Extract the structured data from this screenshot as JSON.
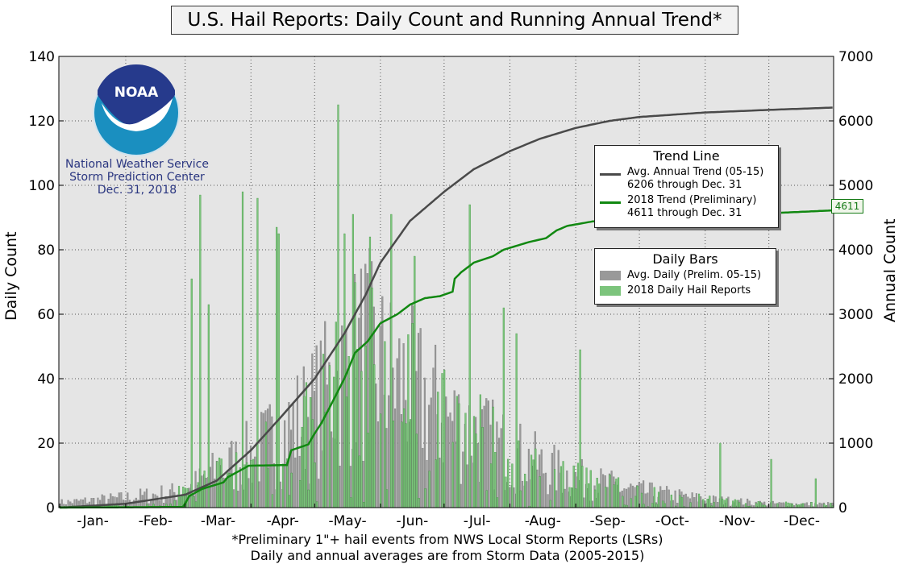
{
  "title": "U.S. Hail Reports: Daily Count and Running Annual Trend*",
  "logo": {
    "emblem_text": "NOAA",
    "lines": [
      "National Weather Service",
      "Storm Prediction Center",
      "Dec. 31, 2018"
    ]
  },
  "footnotes": [
    "*Preliminary 1\"+ hail events from NWS Local Storm Reports (LSRs)",
    "Daily and annual averages are from Storm Data (2005-2015)"
  ],
  "legend_trend": {
    "title": "Trend Line",
    "items": [
      {
        "line1": "Avg. Annual Trend (05-15)",
        "line2": "6206 through Dec. 31",
        "color": "#4a4a4a"
      },
      {
        "line1": "2018 Trend (Preliminary)",
        "line2": "4611 through Dec. 31",
        "color": "#118811"
      }
    ]
  },
  "legend_bars": {
    "title": "Daily Bars",
    "items": [
      {
        "label": "Avg. Daily (Prelim. 05-15)",
        "color": "#999999"
      },
      {
        "label": "2018 Daily Hail Reports",
        "color": "#7cc47c"
      }
    ]
  },
  "end_label": "4611",
  "chart_data": {
    "type": "bar",
    "xlabel": "",
    "ylabel": "Daily Count",
    "y2label": "Annual Count",
    "ylim": [
      0,
      140
    ],
    "y2lim": [
      0,
      7000
    ],
    "yticks": [
      0,
      20,
      40,
      60,
      80,
      100,
      120,
      140
    ],
    "y2ticks": [
      0,
      1000,
      2000,
      3000,
      4000,
      5000,
      6000,
      7000
    ],
    "months": [
      "-Jan-",
      "-Feb-",
      "-Mar-",
      "-Apr-",
      "-May-",
      "-Jun-",
      "-Jul-",
      "-Aug-",
      "-Sep-",
      "-Oct-",
      "-Nov-",
      "-Dec-"
    ],
    "x_range_days": [
      1,
      365
    ],
    "grid": true,
    "bar_series": [
      {
        "name": "Avg. Daily (Prelim. 05-15)",
        "color": "#999999",
        "profile_day": [
          1,
          32,
          60,
          75,
          91,
          105,
          121,
          135,
          145,
          152,
          166,
          182,
          196,
          213,
          227,
          244,
          274,
          305,
          335,
          365
        ],
        "profile_typical": [
          1.5,
          3,
          5,
          11,
          16,
          22,
          30,
          41,
          48,
          42,
          37,
          28,
          23,
          17,
          13,
          9,
          5,
          2.5,
          1.2,
          1
        ]
      },
      {
        "name": "2018 Daily Hail Reports",
        "color": "#7cc47c",
        "peaks": [
          [
            63,
            71
          ],
          [
            67,
            97
          ],
          [
            71,
            63
          ],
          [
            87,
            98
          ],
          [
            94,
            96
          ],
          [
            103,
            87
          ],
          [
            104,
            85
          ],
          [
            132,
            125
          ],
          [
            135,
            85
          ],
          [
            139,
            91
          ],
          [
            147,
            84
          ],
          [
            157,
            91
          ],
          [
            168,
            78
          ],
          [
            194,
            94
          ],
          [
            210,
            62
          ],
          [
            216,
            54
          ],
          [
            246,
            49
          ],
          [
            312,
            20
          ],
          [
            336,
            15
          ],
          [
            357,
            9
          ]
        ]
      }
    ],
    "line_series": [
      {
        "name": "Avg. Annual Trend (05-15)",
        "color": "#4a4a4a",
        "x": [
          1,
          32,
          60,
          75,
          91,
          105,
          121,
          135,
          145,
          152,
          166,
          182,
          196,
          213,
          227,
          244,
          260,
          274,
          305,
          335,
          365
        ],
        "y": [
          0,
          60,
          200,
          420,
          890,
          1400,
          2000,
          2700,
          3300,
          3800,
          4450,
          4900,
          5250,
          5530,
          5720,
          5890,
          6000,
          6060,
          6130,
          6170,
          6206
        ]
      },
      {
        "name": "2018 Trend (Preliminary)",
        "color": "#118811",
        "x": [
          1,
          32,
          59,
          62,
          68,
          78,
          80,
          90,
          108,
          110,
          118,
          121,
          124,
          128,
          135,
          140,
          146,
          152,
          160,
          166,
          173,
          180,
          186,
          187,
          190,
          196,
          205,
          210,
          222,
          230,
          235,
          240,
          252,
          365
        ],
        "y": [
          0,
          5,
          10,
          180,
          290,
          390,
          470,
          650,
          660,
          890,
          980,
          1150,
          1300,
          1550,
          2000,
          2400,
          2580,
          2860,
          3000,
          3150,
          3250,
          3280,
          3350,
          3550,
          3650,
          3800,
          3900,
          4000,
          4120,
          4180,
          4300,
          4370,
          4440,
          4611
        ]
      }
    ]
  }
}
